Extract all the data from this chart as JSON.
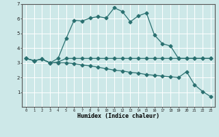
{
  "xlabel": "Humidex (Indice chaleur)",
  "background_color": "#cde8e8",
  "grid_color": "#ffffff",
  "line_color": "#2a7070",
  "x_data": [
    0,
    1,
    2,
    3,
    4,
    5,
    6,
    7,
    8,
    9,
    10,
    11,
    12,
    13,
    14,
    15,
    16,
    17,
    18,
    19,
    20,
    21,
    22,
    23
  ],
  "line1": [
    3.3,
    3.15,
    3.25,
    3.0,
    3.05,
    3.3,
    3.3,
    3.3,
    3.3,
    3.3,
    3.3,
    3.3,
    3.3,
    3.3,
    3.3,
    3.3,
    3.3,
    3.3,
    3.3,
    3.3,
    3.3,
    3.3,
    3.3,
    3.3
  ],
  "line2": [
    3.3,
    3.15,
    3.25,
    3.0,
    3.3,
    4.65,
    5.9,
    5.85,
    6.05,
    6.15,
    6.05,
    6.75,
    6.5,
    5.8,
    6.2,
    6.4,
    4.9,
    4.3,
    4.15,
    3.3,
    3.3,
    3.3,
    3.3,
    3.3
  ],
  "line3": [
    3.3,
    3.15,
    3.25,
    3.0,
    3.0,
    3.0,
    2.95,
    2.85,
    2.8,
    2.7,
    2.6,
    2.5,
    2.45,
    2.35,
    2.3,
    2.2,
    2.15,
    2.1,
    2.05,
    2.0,
    2.4,
    1.5,
    1.05,
    0.7
  ],
  "ylim": [
    0,
    7
  ],
  "xlim": [
    -0.5,
    23.5
  ],
  "yticks": [
    1,
    2,
    3,
    4,
    5,
    6,
    7
  ],
  "xticks": [
    0,
    1,
    2,
    3,
    4,
    5,
    6,
    7,
    8,
    9,
    10,
    11,
    12,
    13,
    14,
    15,
    16,
    17,
    18,
    19,
    20,
    21,
    22,
    23
  ]
}
